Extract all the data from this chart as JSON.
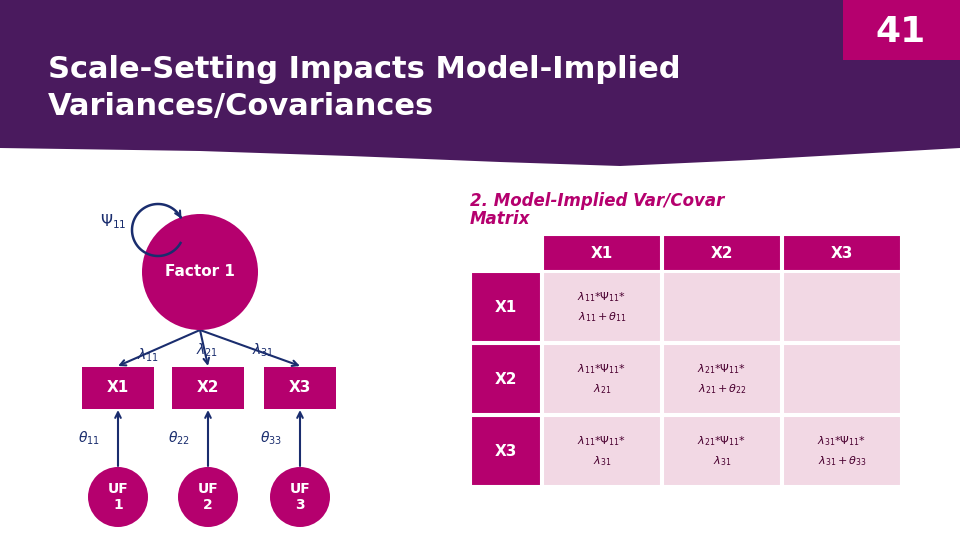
{
  "title": "Scale-Setting Impacts Model-Implied\nVariances/Covariances",
  "slide_number": "41",
  "bg_header_color": "#4a1a5e",
  "accent_color": "#b5006e",
  "light_pink": "#f2d8e4",
  "white": "#ffffff",
  "table_title_line1": "2. Model-Implied Var/Covar",
  "table_title_line2": "Matrix",
  "table_cols": [
    "X1",
    "X2",
    "X3"
  ],
  "table_rows": [
    "X1",
    "X2",
    "X3"
  ],
  "table_cells": [
    [
      "$\\lambda_{11}$*$\\Psi_{11}$*\n$\\lambda_{11} + \\theta_{11}$",
      "",
      ""
    ],
    [
      "$\\lambda_{11}$*$\\Psi_{11}$*\n$\\lambda_{21}$",
      "$\\lambda_{21}$*$\\Psi_{11}$*\n$\\lambda_{21}+\\theta_{22}$",
      ""
    ],
    [
      "$\\lambda_{11}$*$\\Psi_{11}$*\n$\\lambda_{31}$",
      "$\\lambda_{21}$*$\\Psi_{11}$*\n$\\lambda_{31}$",
      "$\\lambda_{31}$*$\\Psi_{11}$*\n$\\lambda_{31}+\\theta_{33}$"
    ]
  ],
  "arrow_color": "#1a2d6e",
  "label_color": "#1a2d6e",
  "table_title_color": "#b5006e"
}
